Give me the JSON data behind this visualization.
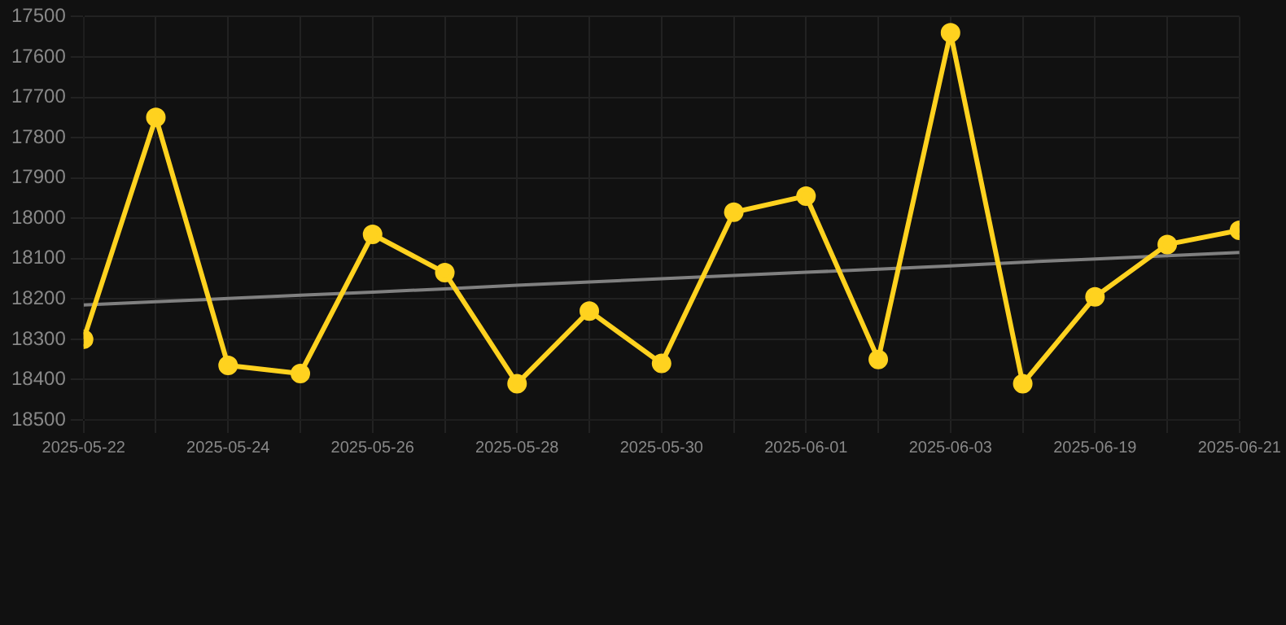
{
  "chart_data": {
    "type": "line",
    "categories": [
      "2025-05-22",
      null,
      "2025-05-24",
      null,
      "2025-05-26",
      null,
      "2025-05-28",
      null,
      "2025-05-30",
      null,
      "2025-06-01",
      null,
      "2025-06-03",
      null,
      "2025-06-19",
      null,
      "2025-06-21"
    ],
    "series": [
      {
        "color": "#ffd21f",
        "marker": "circle",
        "values": [
          18300,
          17750,
          18365,
          18385,
          18040,
          18135,
          18410,
          18230,
          18360,
          17985,
          17945,
          18350,
          17540,
          18410,
          18195,
          18065,
          18030
        ]
      },
      {
        "type": "line",
        "color": "#808080",
        "marker": "none",
        "values": [
          18215,
          18207,
          18199,
          18191,
          18183,
          18175,
          18166,
          18158,
          18150,
          18142,
          18134,
          18126,
          18118,
          18109,
          18101,
          18093,
          18085
        ]
      }
    ],
    "ylim": [
      18500,
      17500
    ],
    "yticks": [
      17500,
      17600,
      17700,
      17800,
      17900,
      18000,
      18100,
      18200,
      18300,
      18400,
      18500
    ],
    "grid": true,
    "legend": false
  }
}
